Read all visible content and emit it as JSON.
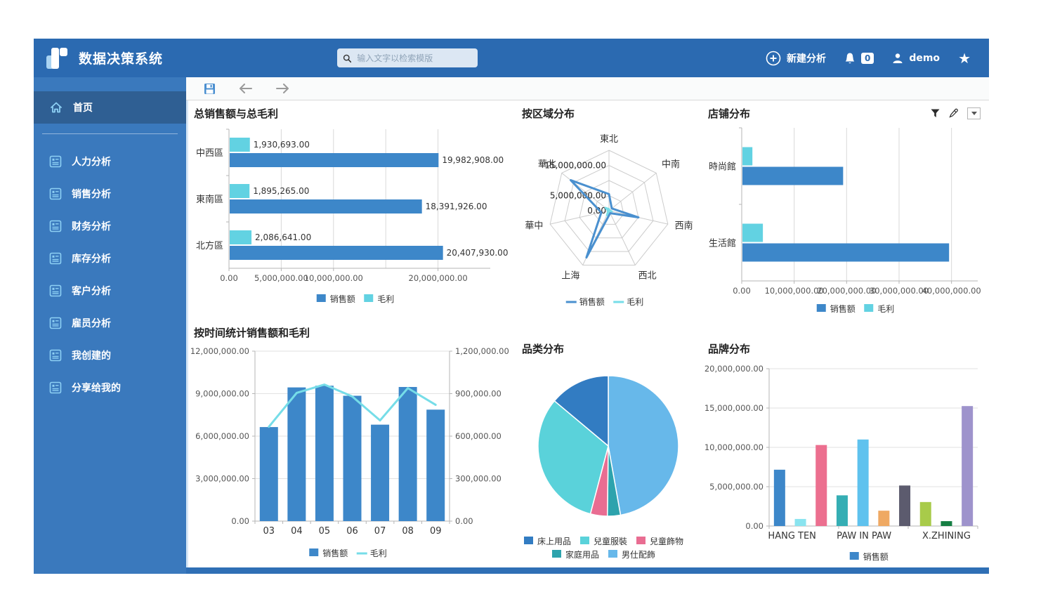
{
  "app": {
    "title": "数据决策系统",
    "search_placeholder": "输入文字以检索模版",
    "nav": {
      "new_analysis": "新建分析",
      "notification_count": "0",
      "username": "demo"
    }
  },
  "sidebar": {
    "items": [
      {
        "label": "首页",
        "icon": "home-icon",
        "active": true
      },
      {
        "label": "人力分析",
        "icon": "report-icon"
      },
      {
        "label": "销售分析",
        "icon": "report-icon"
      },
      {
        "label": "财务分析",
        "icon": "report-icon"
      },
      {
        "label": "库存分析",
        "icon": "report-icon"
      },
      {
        "label": "客户分析",
        "icon": "report-icon"
      },
      {
        "label": "雇员分析",
        "icon": "report-icon"
      },
      {
        "label": "我创建的",
        "icon": "report-icon"
      },
      {
        "label": "分享给我的",
        "icon": "report-icon"
      }
    ]
  },
  "charts": {
    "region_bar": {
      "type": "bar",
      "orientation": "horizontal",
      "title": "总销售额与总毛利",
      "categories": [
        "中西區",
        "東南區",
        "北方區"
      ],
      "series": [
        {
          "name": "销售额",
          "color": "#3d87c9",
          "values": [
            19982908,
            18391926,
            20407930
          ],
          "labels": [
            "19,982,908.00",
            "18,391,926.00",
            "20,407,930.00"
          ]
        },
        {
          "name": "毛利",
          "color": "#62d2e2",
          "values": [
            1930693,
            1895265,
            2086641
          ],
          "labels": [
            "1,930,693.00",
            "1,895,265.00",
            "2,086,641.00"
          ]
        }
      ],
      "xmax": 25000000,
      "grid": [
        5000000,
        10000000,
        15000000,
        20000000
      ],
      "ticks": [
        {
          "v": 0,
          "label": "0.00"
        },
        {
          "v": 5000000,
          "label": "5,000,000.00"
        },
        {
          "v": 10000000,
          "label": "10,000,000.00"
        },
        {
          "v": 20000000,
          "label": "20,000,000.00"
        }
      ],
      "show_value_labels": true
    },
    "region_radar": {
      "type": "radar",
      "title": "按区域分布",
      "axes": [
        "東北",
        "中南",
        "西南",
        "西北",
        "上海",
        "華中",
        "華北"
      ],
      "rmax": 20000000,
      "rings": [
        5000000,
        10000000,
        15000000,
        20000000
      ],
      "ring_labels": [
        {
          "v": 0,
          "label": "0.00"
        },
        {
          "v": 5000000,
          "label": "5,000,000.00"
        },
        {
          "v": 15000000,
          "label": "15,000,000.00"
        }
      ],
      "series": [
        {
          "name": "销售额",
          "color": "#4a90cf",
          "values": [
            5500000,
            1200000,
            10000000,
            900000,
            17200000,
            2600000,
            16200000
          ]
        },
        {
          "name": "毛利",
          "color": "#76dde8",
          "values": [
            600000,
            150000,
            1000000,
            100000,
            1700000,
            300000,
            1600000
          ]
        }
      ]
    },
    "store_bar": {
      "type": "bar",
      "orientation": "horizontal",
      "title": "店铺分布",
      "categories": [
        "時尚館",
        "生活館"
      ],
      "series": [
        {
          "name": "销售额",
          "color": "#3d87c9",
          "values": [
            19200000,
            39400000
          ]
        },
        {
          "name": "毛利",
          "color": "#62d2e2",
          "values": [
            1900000,
            3900000
          ]
        }
      ],
      "xmax": 45000000,
      "grid": [
        10000000,
        20000000,
        30000000,
        40000000
      ],
      "ticks": [
        {
          "v": 0,
          "label": "0.00"
        },
        {
          "v": 10000000,
          "label": "10,000,000.00"
        },
        {
          "v": 20000000,
          "label": "20,000,000.00"
        },
        {
          "v": 30000000,
          "label": "30,000,000.00"
        },
        {
          "v": 40000000,
          "label": "40,000,000.00"
        }
      ],
      "show_value_labels": false,
      "header_icons": [
        "filter-icon",
        "edit-icon",
        "dropdown-icon"
      ]
    },
    "time_combo": {
      "type": "combo",
      "title": "按时间统计销售额和毛利",
      "categories": [
        "03",
        "04",
        "05",
        "06",
        "07",
        "08",
        "09"
      ],
      "bar_series": {
        "name": "销售额",
        "color": "#3d87c9",
        "values": [
          6640000,
          9440000,
          9560000,
          8850000,
          6810000,
          9470000,
          7870000
        ]
      },
      "line_series": {
        "name": "毛利",
        "color": "#76dde8",
        "values": [
          666000,
          905000,
          964000,
          880000,
          711000,
          939000,
          821000
        ]
      },
      "left_axis": {
        "max": 12000000,
        "ticks": [
          {
            "v": 0,
            "label": "0.00"
          },
          {
            "v": 3000000,
            "label": "3,000,000.00"
          },
          {
            "v": 6000000,
            "label": "6,000,000.00"
          },
          {
            "v": 9000000,
            "label": "9,000,000.00"
          },
          {
            "v": 12000000,
            "label": "12,000,000.00"
          }
        ]
      },
      "right_axis": {
        "max": 1200000,
        "ticks": [
          {
            "v": 0,
            "label": "0.00"
          },
          {
            "v": 300000,
            "label": "300,000.00"
          },
          {
            "v": 600000,
            "label": "600,000.00"
          },
          {
            "v": 900000,
            "label": "900,000.00"
          },
          {
            "v": 1200000,
            "label": "1,200,000.00"
          }
        ]
      }
    },
    "category_pie": {
      "type": "pie",
      "title": "品类分布",
      "slices": [
        {
          "name": "男仕配飾",
          "color": "#67b8ea",
          "pct": 47.2
        },
        {
          "name": "家庭用品",
          "color": "#2da3ad",
          "pct": 3.0
        },
        {
          "name": "兒童飾物",
          "color": "#e96d92",
          "pct": 3.9
        },
        {
          "name": "兒童服裝",
          "color": "#5ad2da",
          "pct": 32.0
        },
        {
          "name": "床上用品",
          "color": "#327cc2",
          "pct": 13.9
        }
      ],
      "legend_rows": [
        [
          "床上用品",
          "兒童服裝",
          "兒童飾物"
        ],
        [
          "家庭用品",
          "男仕配飾"
        ]
      ]
    },
    "brand_bar": {
      "type": "bar",
      "orientation": "vertical",
      "title": "品牌分布",
      "group_labels": [
        {
          "label": "HANG TEN",
          "x": 0.11
        },
        {
          "label": "PAW IN PAW",
          "x": 0.455
        },
        {
          "label": "X.ZHINING",
          "x": 0.85
        }
      ],
      "bars": [
        {
          "color": "#3d87c9",
          "value": 7160000
        },
        {
          "color": "#8ae4ef",
          "value": 900000
        },
        {
          "color": "#ec6f8f",
          "value": 10300000
        },
        {
          "color": "#35aeb4",
          "value": 3900000
        },
        {
          "color": "#5fc2ee",
          "value": 11000000
        },
        {
          "color": "#efa963",
          "value": 1950000
        },
        {
          "color": "#5c5b6e",
          "value": 5150000
        },
        {
          "color": "#a8cb4a",
          "value": 3050000
        },
        {
          "color": "#157e43",
          "value": 620000
        },
        {
          "color": "#9e93cc",
          "value": 15250000
        }
      ],
      "ymax": 20000000,
      "ticks": [
        {
          "v": 0,
          "label": "0.00"
        },
        {
          "v": 5000000,
          "label": "5,000,000.00"
        },
        {
          "v": 10000000,
          "label": "10,000,000.00"
        },
        {
          "v": 15000000,
          "label": "15,000,000.00"
        },
        {
          "v": 20000000,
          "label": "20,000,000.00"
        }
      ],
      "legend": [
        {
          "name": "销售额",
          "color": "#3d87c9"
        }
      ]
    }
  }
}
